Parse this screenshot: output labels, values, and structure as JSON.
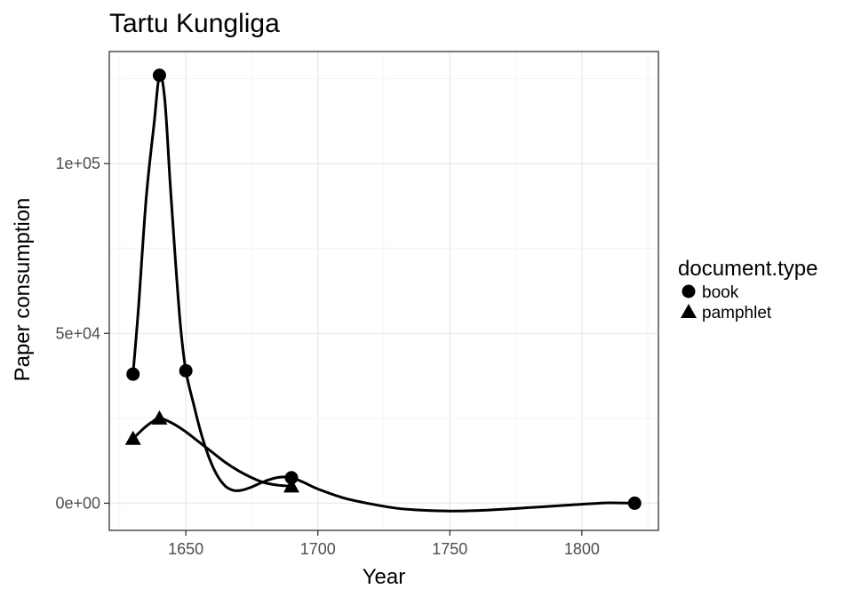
{
  "chart_data": {
    "type": "line",
    "title": "Tartu Kungliga",
    "xlabel": "Year",
    "ylabel": "Paper consumption",
    "xlim": [
      1621,
      1829
    ],
    "ylim": [
      -8000,
      133000
    ],
    "x_ticks": [
      1650,
      1700,
      1750,
      1800
    ],
    "x_tick_labels": [
      "1650",
      "1700",
      "1750",
      "1800"
    ],
    "y_ticks": [
      0,
      50000,
      100000
    ],
    "y_tick_labels": [
      "0e+00",
      "5e+04",
      "1e+05"
    ],
    "grid": true,
    "legend": {
      "title": "document.type",
      "position": "right",
      "entries": [
        {
          "label": "book",
          "shape": "circle"
        },
        {
          "label": "pamphlet",
          "shape": "triangle"
        }
      ]
    },
    "series": [
      {
        "name": "book",
        "shape": "circle",
        "points": [
          [
            1630,
            38000
          ],
          [
            1640,
            126000
          ],
          [
            1650,
            39000
          ],
          [
            1690,
            7500
          ],
          [
            1820,
            0
          ]
        ],
        "smooth": [
          [
            1630,
            38000
          ],
          [
            1632,
            57000
          ],
          [
            1635,
            90000
          ],
          [
            1638,
            112000
          ],
          [
            1640,
            126000
          ],
          [
            1642,
            119000
          ],
          [
            1644,
            95000
          ],
          [
            1646,
            72000
          ],
          [
            1648,
            52000
          ],
          [
            1650,
            39000
          ],
          [
            1653,
            29000
          ],
          [
            1656,
            20000
          ],
          [
            1659,
            13000
          ],
          [
            1662,
            8000
          ],
          [
            1665,
            5000
          ],
          [
            1668,
            3800
          ],
          [
            1671,
            3800
          ],
          [
            1675,
            4800
          ],
          [
            1680,
            6500
          ],
          [
            1685,
            7600
          ],
          [
            1690,
            7500
          ]
        ],
        "color": "#000000"
      },
      {
        "name": "pamphlet",
        "shape": "triangle",
        "points": [
          [
            1630,
            19000
          ],
          [
            1640,
            25000
          ],
          [
            1690,
            5000
          ]
        ],
        "color": "#000000"
      }
    ],
    "smooth_shared": [
      [
        1690,
        7500
      ],
      [
        1695,
        6000
      ],
      [
        1700,
        4200
      ],
      [
        1710,
        1500
      ],
      [
        1720,
        -200
      ],
      [
        1730,
        -1500
      ],
      [
        1740,
        -2100
      ],
      [
        1750,
        -2300
      ],
      [
        1760,
        -2200
      ],
      [
        1770,
        -1800
      ],
      [
        1780,
        -1300
      ],
      [
        1790,
        -800
      ],
      [
        1800,
        -300
      ],
      [
        1810,
        100
      ],
      [
        1820,
        0
      ]
    ],
    "pamphlet_smooth": [
      [
        1630,
        19000
      ],
      [
        1634,
        22000
      ],
      [
        1637,
        23800
      ],
      [
        1640,
        25000
      ],
      [
        1645,
        23500
      ],
      [
        1650,
        21000
      ],
      [
        1655,
        18000
      ],
      [
        1660,
        15000
      ],
      [
        1665,
        12000
      ],
      [
        1670,
        9500
      ],
      [
        1675,
        7500
      ],
      [
        1680,
        6000
      ],
      [
        1685,
        5300
      ],
      [
        1690,
        5000
      ]
    ],
    "colors": {
      "ink": "#000000",
      "tick_text": "#4d4d4d",
      "panel_border": "#333333",
      "grid": "#ebebeb"
    }
  }
}
